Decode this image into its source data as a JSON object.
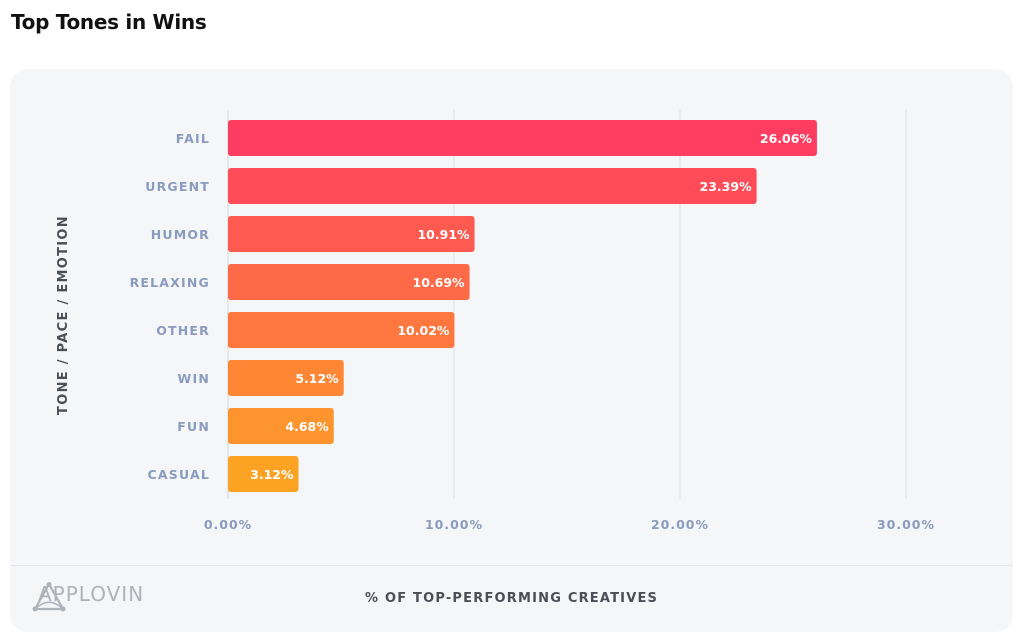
{
  "page": {
    "title": "Top Tones in Wins"
  },
  "footer": {
    "logo_text": "APPLOVIN",
    "logo_icon": "applovin-logo-icon"
  },
  "colors": {
    "bar_top": "#ff3d61",
    "bar_bottom": "#fda324",
    "card_bg": "#f5f6f8",
    "tick_text": "#8a9bbd"
  },
  "chart_data": {
    "type": "bar",
    "orientation": "horizontal",
    "title": "Top Tones in Wins",
    "xlabel": "% OF TOP-PERFORMING CREATIVES",
    "ylabel": "TONE / PACE / EMOTION",
    "categories": [
      "FAIL",
      "URGENT",
      "HUMOR",
      "RELAXING",
      "OTHER",
      "WIN",
      "FUN",
      "CASUAL"
    ],
    "values": [
      26.06,
      23.39,
      10.91,
      10.69,
      10.02,
      5.12,
      4.68,
      3.12
    ],
    "value_labels": [
      "26.06%",
      "23.39%",
      "10.91%",
      "10.69%",
      "10.02%",
      "5.12%",
      "4.68%",
      "3.12%"
    ],
    "xlim": [
      0,
      30
    ],
    "xticks": [
      0,
      10,
      20,
      30
    ],
    "xtick_labels": [
      "0.00%",
      "10.00%",
      "20.00%",
      "30.00%"
    ],
    "grid": true,
    "legend": "none"
  }
}
